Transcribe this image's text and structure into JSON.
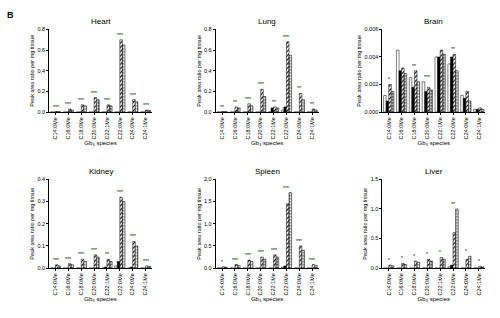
{
  "panel_label": "B",
  "chart_data": [
    {
      "type": "bar",
      "title": "Heart",
      "x_label": "Gb₃ species",
      "y_label": "Peak area ratio per mg tissue",
      "categories": [
        "C14:0Me",
        "C16:0Me",
        "C18:0Me",
        "C20:0Me",
        "C22:1Me",
        "C22:0Me",
        "C24:0Me",
        "C24:1Me"
      ],
      "ylim": [
        0,
        0.8
      ],
      "yticks": [
        {
          "value": 0,
          "label": "0.0"
        },
        0.2,
        0.4,
        0.6,
        0.8
      ],
      "grid": false,
      "significance": [
        "***",
        "***",
        "***",
        "***",
        "***",
        "***",
        "***",
        "***"
      ],
      "series": [
        {
          "color": "#ffffff",
          "marker": "open",
          "values": [
            0,
            0,
            0,
            0,
            0,
            0,
            0,
            0
          ]
        },
        {
          "color": "#000000",
          "marker": "solid",
          "values": [
            0,
            0,
            0,
            0,
            0,
            0,
            0,
            0
          ]
        },
        {
          "color": "#ffffff",
          "marker": "hatched",
          "values": [
            0.005,
            0.03,
            0.07,
            0.14,
            0.07,
            0.7,
            0.12,
            0.02
          ]
        },
        {
          "color": "#ffffff",
          "marker": "dotted",
          "values": [
            0.003,
            0.02,
            0.06,
            0.12,
            0.06,
            0.65,
            0.1,
            0.015
          ]
        }
      ]
    },
    {
      "type": "bar",
      "title": "Lung",
      "x_label": "Gb₃ species",
      "y_label": "Peak area ratio per mg tissue",
      "categories": [
        "C14:0Me",
        "C16:0Me",
        "C18:0Me",
        "C20:0Me",
        "C22:1Me",
        "C22:0Me",
        "C24:0Me",
        "C24:1Me"
      ],
      "ylim": [
        0,
        0.8
      ],
      "yticks": [
        {
          "value": 0,
          "label": "0.0"
        },
        0.2,
        0.4,
        0.6,
        0.8
      ],
      "grid": false,
      "significance": [
        "**",
        "**",
        "***",
        "***",
        "**",
        "***",
        "**",
        "**"
      ],
      "series": [
        {
          "color": "#ffffff",
          "marker": "open",
          "values": [
            0,
            0,
            0,
            0,
            0,
            0.02,
            0,
            0
          ]
        },
        {
          "color": "#000000",
          "marker": "solid",
          "values": [
            0,
            0,
            0,
            0,
            0.04,
            0.05,
            0,
            0
          ]
        },
        {
          "color": "#ffffff",
          "marker": "hatched",
          "values": [
            0.005,
            0.05,
            0.08,
            0.22,
            0.05,
            0.68,
            0.18,
            0.03
          ]
        },
        {
          "color": "#ffffff",
          "marker": "dotted",
          "values": [
            0.004,
            0.04,
            0.06,
            0.15,
            0.04,
            0.55,
            0.12,
            0.02
          ]
        }
      ]
    },
    {
      "type": "bar",
      "title": "Brain",
      "x_label": "Gb₃ species",
      "y_label": "Peak area ratio per mg tissue",
      "categories": [
        "C14:0Me",
        "C16:0Me",
        "C18:0Me",
        "C20:0Me",
        "C22:1Me",
        "C22:0Me",
        "C24:0Me",
        "C24:1Me"
      ],
      "ylim": [
        0,
        0.006
      ],
      "yticks": [
        {
          "value": 0,
          "label": "0.000"
        },
        {
          "value": 0.002,
          "label": "0.002"
        },
        {
          "value": 0.004,
          "label": "0.004"
        },
        {
          "value": 0.006,
          "label": "0.006"
        }
      ],
      "grid": false,
      "significance": [
        "*",
        null,
        "**",
        "***",
        null,
        "**",
        null,
        null
      ],
      "series": [
        {
          "color": "#ffffff",
          "marker": "open",
          "values": [
            0.0012,
            0.0045,
            0.0025,
            0.0022,
            0.004,
            0.0035,
            0.0012,
            0.0002
          ]
        },
        {
          "color": "#000000",
          "marker": "solid",
          "values": [
            0.0008,
            0.003,
            0.0018,
            0.0015,
            0.004,
            0.004,
            0.001,
            0.0002
          ]
        },
        {
          "color": "#ffffff",
          "marker": "hatched",
          "values": [
            0.002,
            0.0032,
            0.003,
            0.0018,
            0.0045,
            0.0042,
            0.0015,
            0.0003
          ]
        },
        {
          "color": "#ffffff",
          "marker": "dotted",
          "values": [
            0.0015,
            0.0028,
            0.0022,
            0.0016,
            0.0042,
            0.003,
            0.0008,
            0.0002
          ]
        }
      ]
    },
    {
      "type": "bar",
      "title": "Kidney",
      "x_label": "Gb₃ species",
      "y_label": "Peak area ratio per mg tissue",
      "categories": [
        "C14:0Me",
        "C16:0Me",
        "C18:0Me",
        "C20:0Me",
        "C22:1Me",
        "C22:0Me",
        "C24:0Me",
        "C24:1Me"
      ],
      "ylim": [
        0,
        0.4
      ],
      "yticks": [
        {
          "value": 0,
          "label": "0.0"
        },
        0.1,
        0.2,
        0.3,
        0.4
      ],
      "grid": false,
      "significance": [
        "***",
        "***",
        "***",
        "***",
        "**",
        "***",
        "***",
        "***"
      ],
      "series": [
        {
          "color": "#ffffff",
          "marker": "open",
          "values": [
            0,
            0,
            0,
            0,
            0,
            0.01,
            0,
            0
          ]
        },
        {
          "color": "#000000",
          "marker": "solid",
          "values": [
            0,
            0,
            0,
            0,
            0.005,
            0.03,
            0.005,
            0
          ]
        },
        {
          "color": "#ffffff",
          "marker": "hatched",
          "values": [
            0.015,
            0.02,
            0.04,
            0.06,
            0.04,
            0.32,
            0.12,
            0.01
          ]
        },
        {
          "color": "#ffffff",
          "marker": "dotted",
          "values": [
            0.01,
            0.015,
            0.03,
            0.05,
            0.03,
            0.3,
            0.1,
            0.008
          ]
        }
      ]
    },
    {
      "type": "bar",
      "title": "Spleen",
      "x_label": "Gb₃ species",
      "y_label": "Peak area ratio per mg tissue",
      "categories": [
        "C14:0Me",
        "C16:0Me",
        "C18:0Me",
        "C20:0Me",
        "C22:1Me",
        "C22:0Me",
        "C24:0Me",
        "C24:1Me"
      ],
      "ylim": [
        0,
        2.0
      ],
      "yticks": [
        {
          "value": 0,
          "label": "0.0"
        },
        0.5,
        {
          "value": 1,
          "label": "1.0"
        },
        1.5,
        {
          "value": 2,
          "label": "2.0"
        }
      ],
      "grid": false,
      "significance": [
        "*",
        "***",
        "***",
        "***",
        "***",
        "***",
        "***",
        "***"
      ],
      "series": [
        {
          "color": "#ffffff",
          "marker": "open",
          "values": [
            0,
            0,
            0,
            0,
            0,
            0.02,
            0,
            0
          ]
        },
        {
          "color": "#000000",
          "marker": "solid",
          "values": [
            0,
            0,
            0,
            0,
            0,
            0.05,
            0,
            0
          ]
        },
        {
          "color": "#ffffff",
          "marker": "hatched",
          "values": [
            0.03,
            0.08,
            0.18,
            0.25,
            0.3,
            1.45,
            0.5,
            0.08
          ]
        },
        {
          "color": "#ffffff",
          "marker": "dotted",
          "values": [
            0.02,
            0.06,
            0.15,
            0.2,
            0.25,
            1.7,
            0.4,
            0.06
          ]
        }
      ]
    },
    {
      "type": "bar",
      "title": "Liver",
      "x_label": "Gb₃ species",
      "y_label": "Peak area ratio per mg tissue",
      "categories": [
        "C14:0Me",
        "C16:0Me",
        "C18:0Me",
        "C20:0Me",
        "C22:1Me",
        "C22:0Me",
        "C24:0Me",
        "C24:1Me"
      ],
      "ylim": [
        0,
        1.5
      ],
      "yticks": [
        {
          "value": 0,
          "label": "0.0"
        },
        0.5,
        {
          "value": 1,
          "label": "1.0"
        },
        1.5
      ],
      "grid": false,
      "significance": [
        "*",
        "*",
        "*",
        "*",
        "*",
        "**",
        "*",
        "*"
      ],
      "series": [
        {
          "color": "#ffffff",
          "marker": "open",
          "values": [
            0,
            0,
            0,
            0,
            0,
            0.02,
            0,
            0
          ]
        },
        {
          "color": "#000000",
          "marker": "solid",
          "values": [
            0,
            0,
            0,
            0,
            0,
            0.05,
            0,
            0
          ]
        },
        {
          "color": "#ffffff",
          "marker": "hatched",
          "values": [
            0.05,
            0.08,
            0.12,
            0.15,
            0.18,
            0.6,
            0.15,
            0.03
          ]
        },
        {
          "color": "#ffffff",
          "marker": "dotted",
          "values": [
            0.04,
            0.06,
            0.1,
            0.12,
            0.15,
            1.0,
            0.2,
            0.02
          ]
        }
      ]
    }
  ]
}
